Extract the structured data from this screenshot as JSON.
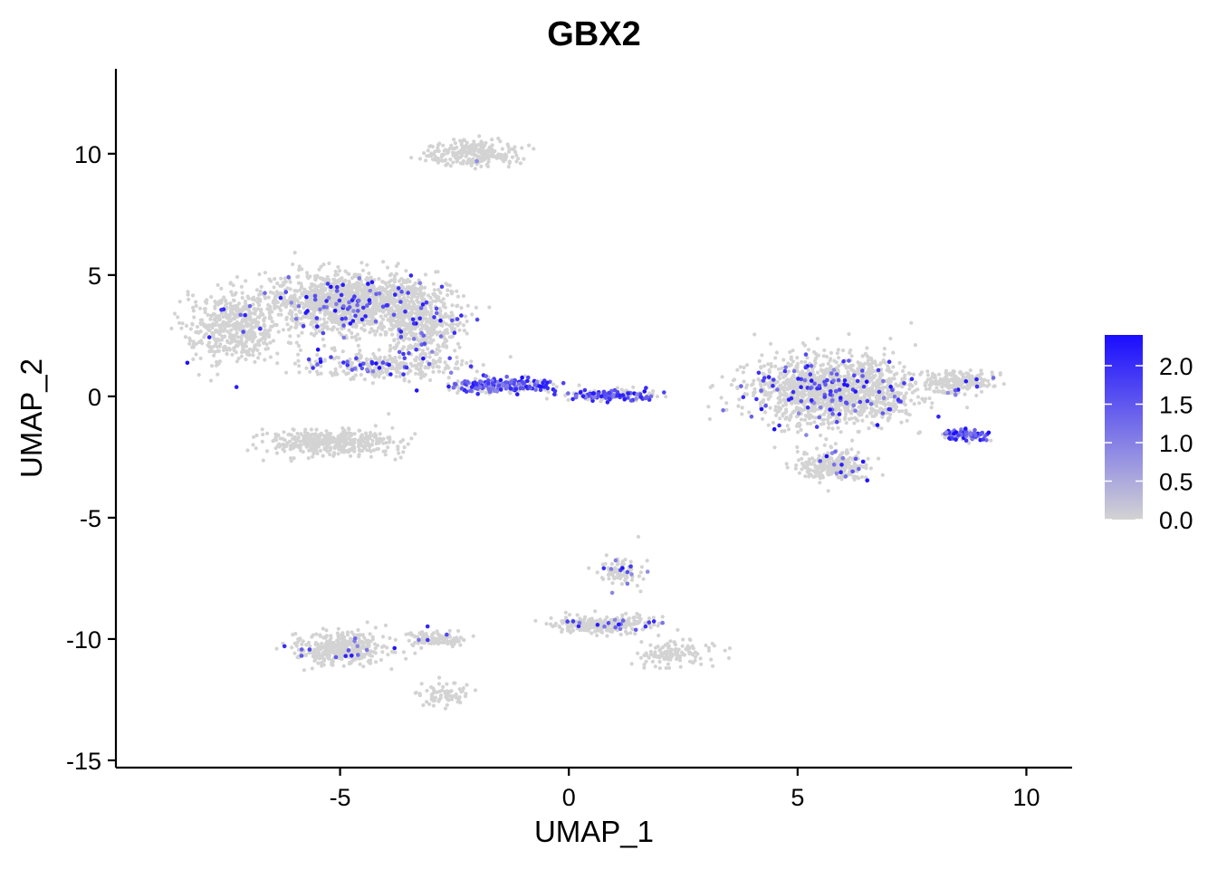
{
  "chart_data": {
    "type": "scatter",
    "title": "GBX2",
    "xlabel": "UMAP_1",
    "ylabel": "UMAP_2",
    "xlim": [
      -9.9,
      11.0
    ],
    "ylim": [
      -15.3,
      13.5
    ],
    "x_ticks": [
      -5,
      0,
      5,
      10
    ],
    "x_tick_labels": [
      "-5",
      "0",
      "5",
      "10"
    ],
    "y_ticks": [
      -15,
      -10,
      -5,
      0,
      5,
      10
    ],
    "y_tick_labels": [
      "-15",
      "-10",
      "-5",
      "0",
      "5",
      "10"
    ],
    "grid": false,
    "legend": {
      "position": "right",
      "type": "colorbar",
      "range": [
        0,
        2.4
      ],
      "ticks": [
        0,
        0.5,
        1.0,
        1.5,
        2.0
      ],
      "tick_labels": [
        "0.0",
        "0.5",
        "1.0",
        "1.5",
        "2.0"
      ],
      "low_color": "#d3d3d3",
      "high_color": "#1a0dff"
    },
    "point_color_low": "#d3d3d3",
    "point_color_high": "#1a0dff",
    "clusters": [
      {
        "center": [
          -4.8,
          3.9
        ],
        "spread": [
          1.7,
          1.1
        ],
        "count": 1400,
        "expr_rate": 0.05
      },
      {
        "center": [
          -7.3,
          2.8
        ],
        "spread": [
          0.9,
          1.3
        ],
        "count": 500,
        "expr_rate": 0.02
      },
      {
        "center": [
          -3.2,
          2.9
        ],
        "spread": [
          0.8,
          1.0
        ],
        "count": 350,
        "expr_rate": 0.06
      },
      {
        "center": [
          -4.0,
          1.3
        ],
        "spread": [
          1.5,
          0.5
        ],
        "count": 300,
        "expr_rate": 0.18
      },
      {
        "center": [
          -5.2,
          -1.9
        ],
        "spread": [
          1.2,
          0.5
        ],
        "count": 400,
        "expr_rate": 0.01
      },
      {
        "center": [
          -2.1,
          10.0
        ],
        "spread": [
          0.9,
          0.45
        ],
        "count": 260,
        "expr_rate": 0.01
      },
      {
        "center": [
          -1.5,
          0.45
        ],
        "spread": [
          1.0,
          0.25
        ],
        "count": 260,
        "expr_rate": 0.55
      },
      {
        "center": [
          0.9,
          0.05
        ],
        "spread": [
          0.9,
          0.2
        ],
        "count": 200,
        "expr_rate": 0.45
      },
      {
        "center": [
          5.8,
          0.2
        ],
        "spread": [
          1.6,
          1.2
        ],
        "count": 1400,
        "expr_rate": 0.08
      },
      {
        "center": [
          8.7,
          -1.6
        ],
        "spread": [
          0.4,
          0.2
        ],
        "count": 110,
        "expr_rate": 0.55
      },
      {
        "center": [
          8.5,
          0.6
        ],
        "spread": [
          0.7,
          0.4
        ],
        "count": 200,
        "expr_rate": 0.04
      },
      {
        "center": [
          5.8,
          -2.8
        ],
        "spread": [
          0.7,
          0.6
        ],
        "count": 260,
        "expr_rate": 0.05
      },
      {
        "center": [
          -5.0,
          -10.4
        ],
        "spread": [
          0.9,
          0.6
        ],
        "count": 380,
        "expr_rate": 0.03
      },
      {
        "center": [
          -2.9,
          -10.0
        ],
        "spread": [
          0.6,
          0.25
        ],
        "count": 120,
        "expr_rate": 0.03
      },
      {
        "center": [
          -2.7,
          -12.3
        ],
        "spread": [
          0.5,
          0.5
        ],
        "count": 70,
        "expr_rate": 0.0
      },
      {
        "center": [
          0.8,
          -9.4
        ],
        "spread": [
          1.0,
          0.3
        ],
        "count": 280,
        "expr_rate": 0.05
      },
      {
        "center": [
          2.3,
          -10.6
        ],
        "spread": [
          0.8,
          0.45
        ],
        "count": 120,
        "expr_rate": 0.0
      },
      {
        "center": [
          1.1,
          -7.2
        ],
        "spread": [
          0.4,
          0.6
        ],
        "count": 90,
        "expr_rate": 0.08
      }
    ]
  }
}
